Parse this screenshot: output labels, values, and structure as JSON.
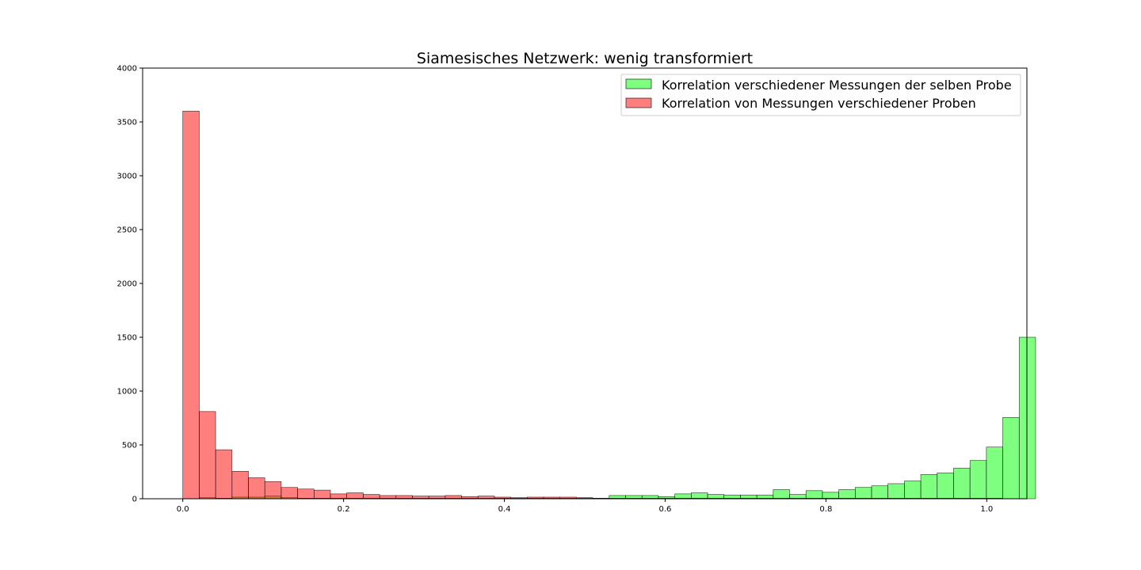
{
  "chart_data": {
    "type": "bar",
    "chart_kind": "histogram",
    "title": "Siamesisches Netzwerk: wenig transformiert",
    "xlabel": "",
    "ylabel": "",
    "xlim": [
      -0.05,
      1.05
    ],
    "ylim": [
      0,
      4000
    ],
    "x_ticks": [
      0.0,
      0.2,
      0.4,
      0.6,
      0.8,
      1.0
    ],
    "x_tick_labels": [
      "0.0",
      "0.2",
      "0.4",
      "0.6",
      "0.8",
      "1.0"
    ],
    "y_ticks": [
      0,
      500,
      1000,
      1500,
      2000,
      2500,
      3000,
      3500,
      4000
    ],
    "y_tick_labels": [
      "0",
      "500",
      "1000",
      "1500",
      "2000",
      "2500",
      "3000",
      "3500",
      "4000"
    ],
    "grid": false,
    "legend_position": "top-right",
    "bin_start": 0.0,
    "bin_width": 0.0204,
    "series": [
      {
        "name": "Korrelation verschiedener Messungen der selben Probe",
        "color": "#00ff00",
        "opacity": 0.5,
        "values": [
          0,
          10,
          5,
          15,
          15,
          25,
          10,
          5,
          5,
          5,
          5,
          5,
          5,
          5,
          5,
          5,
          5,
          5,
          5,
          5,
          5,
          5,
          5,
          5,
          5,
          5,
          30,
          30,
          30,
          20,
          45,
          55,
          40,
          35,
          35,
          35,
          85,
          40,
          75,
          60,
          85,
          105,
          120,
          140,
          165,
          225,
          240,
          285,
          355,
          480,
          755,
          1500
        ]
      },
      {
        "name": "Korrelation von Messungen verschiedener Proben",
        "color": "#ff0000",
        "opacity": 0.5,
        "values": [
          3600,
          810,
          455,
          255,
          195,
          160,
          105,
          90,
          80,
          45,
          55,
          40,
          30,
          30,
          25,
          25,
          30,
          20,
          25,
          15,
          10,
          15,
          15,
          15,
          10,
          5,
          5,
          5,
          5,
          5,
          5,
          5,
          5,
          5,
          5,
          5,
          5,
          5,
          5,
          5,
          5,
          5,
          5,
          5,
          5,
          5,
          5,
          5,
          5,
          5,
          0,
          0
        ]
      }
    ]
  }
}
